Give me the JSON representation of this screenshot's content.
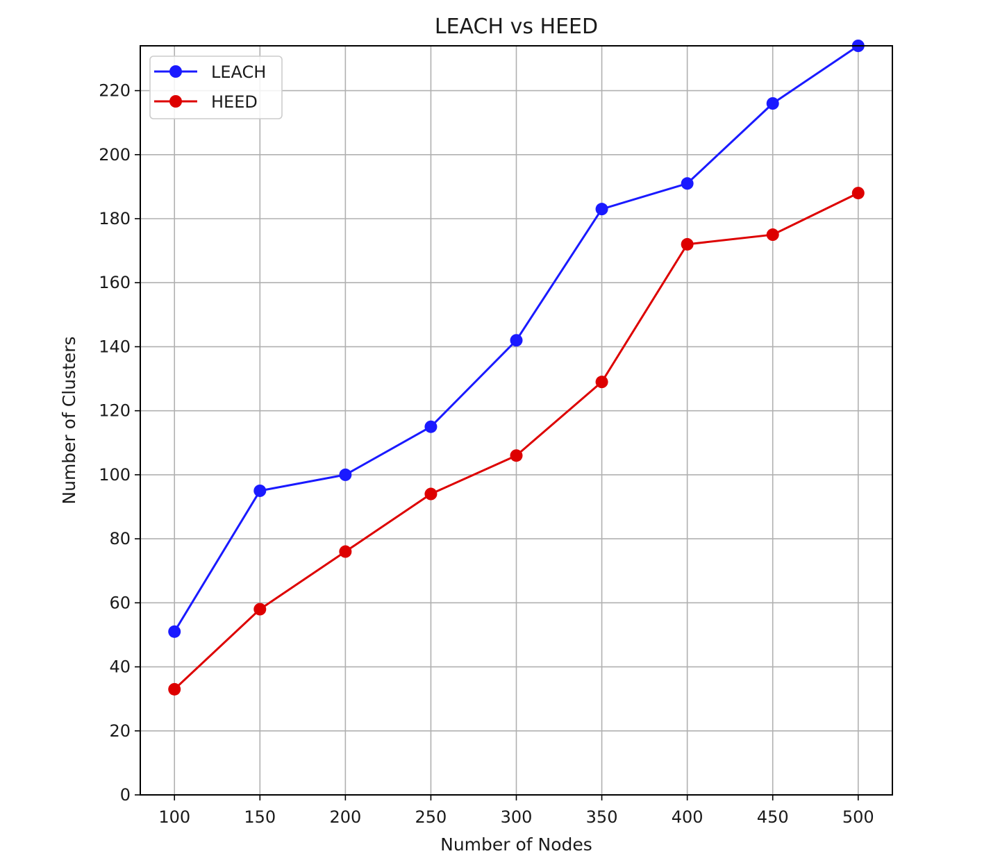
{
  "chart_data": {
    "type": "line",
    "title": "LEACH vs HEED",
    "xlabel": "Number of Nodes",
    "ylabel": "Number of Clusters",
    "x": [
      100,
      150,
      200,
      250,
      300,
      350,
      400,
      450,
      500
    ],
    "xlim": [
      80,
      520
    ],
    "ylim": [
      0,
      234
    ],
    "xticks": [
      100,
      150,
      200,
      250,
      300,
      350,
      400,
      450,
      500
    ],
    "yticks": [
      0,
      20,
      40,
      60,
      80,
      100,
      120,
      140,
      160,
      180,
      200,
      220
    ],
    "grid": true,
    "legend_position": "top-left",
    "series": [
      {
        "name": "LEACH",
        "color": "#1a1aff",
        "marker": "circle",
        "values": [
          51,
          95,
          100,
          115,
          142,
          183,
          191,
          216,
          234
        ]
      },
      {
        "name": "HEED",
        "color": "#dd0000",
        "marker": "circle",
        "values": [
          33,
          58,
          76,
          94,
          106,
          129,
          172,
          175,
          188
        ]
      }
    ]
  }
}
